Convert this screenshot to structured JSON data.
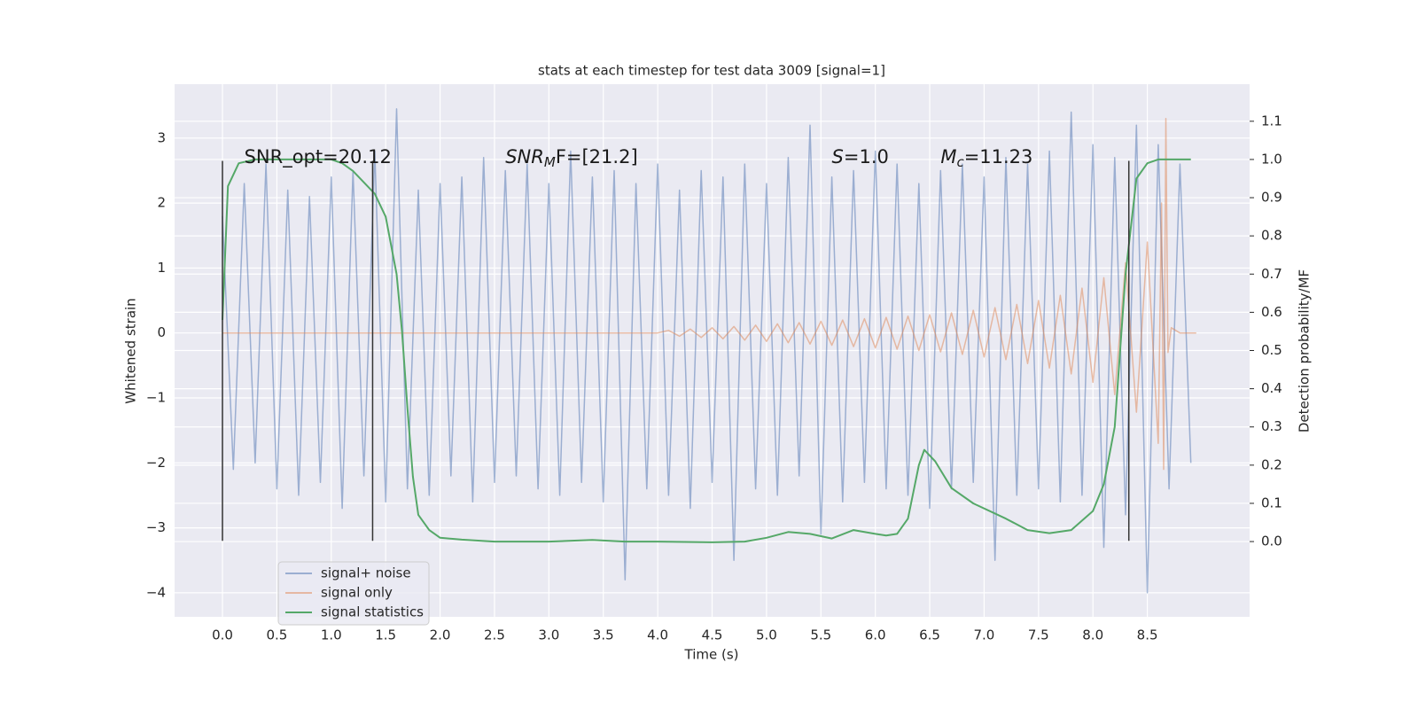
{
  "chart_data": {
    "type": "line",
    "title": "stats at each timestep for test data 3009 [signal=1]",
    "xlabel": "Time (s)",
    "ylabel": "Whitened strain",
    "y2label": "Detection probability/MF",
    "xlim": [
      -0.44,
      9.44
    ],
    "ylim": [
      -4.37,
      3.83
    ],
    "y2lim": [
      -0.197,
      1.197
    ],
    "xticks": [
      {
        "value": 0,
        "label": "0.0"
      },
      0.5,
      {
        "value": 1,
        "label": "1.0"
      },
      1.5,
      {
        "value": 2,
        "label": "2.0"
      },
      2.5,
      {
        "value": 3,
        "label": "3.0"
      },
      3.5,
      {
        "value": 4,
        "label": "4.0"
      },
      4.5,
      {
        "value": 5,
        "label": "5.0"
      },
      5.5,
      {
        "value": 6,
        "label": "6.0"
      },
      6.5,
      {
        "value": 7,
        "label": "7.0"
      },
      7.5,
      {
        "value": 8,
        "label": "8.0"
      },
      8.5
    ],
    "yticks": [
      {
        "value": -4,
        "label": "−4"
      },
      {
        "value": -3,
        "label": "−3"
      },
      {
        "value": -2,
        "label": "−2"
      },
      {
        "value": -1,
        "label": "−1"
      },
      0,
      1,
      2,
      3
    ],
    "y2ticks": [
      {
        "value": 0,
        "label": "0.0"
      },
      0.1,
      0.2,
      0.3,
      0.4,
      0.5,
      0.6,
      0.7,
      0.8,
      0.9,
      {
        "value": 1,
        "label": "1.0"
      },
      1.1
    ],
    "grid": true,
    "legend": "lower left",
    "series": [
      {
        "name": "signal+ noise",
        "color": "#4c72b0",
        "opacity": 0.5,
        "x": [
          0,
          0.1,
          0.2,
          0.3,
          0.4,
          0.5,
          0.6,
          0.7,
          0.8,
          0.9,
          1,
          1.1,
          1.2,
          1.3,
          1.4,
          1.5,
          1.6,
          1.7,
          1.8,
          1.9,
          2,
          2.1,
          2.2,
          2.3,
          2.4,
          2.5,
          2.6,
          2.7,
          2.8,
          2.9,
          3,
          3.1,
          3.2,
          3.3,
          3.4,
          3.5,
          3.6,
          3.7,
          3.8,
          3.9,
          4,
          4.1,
          4.2,
          4.3,
          4.4,
          4.5,
          4.6,
          4.7,
          4.8,
          4.9,
          5,
          5.1,
          5.2,
          5.3,
          5.4,
          5.5,
          5.6,
          5.7,
          5.8,
          5.9,
          6,
          6.1,
          6.2,
          6.3,
          6.4,
          6.5,
          6.6,
          6.7,
          6.8,
          6.9,
          7,
          7.1,
          7.2,
          7.3,
          7.4,
          7.5,
          7.6,
          7.7,
          7.8,
          7.9,
          8,
          8.1,
          8.2,
          8.3,
          8.4,
          8.5,
          8.6,
          8.7,
          8.8,
          8.9
        ],
        "values": [
          1.8,
          -2.1,
          2.3,
          -2.0,
          2.6,
          -2.4,
          2.2,
          -2.5,
          2.1,
          -2.3,
          2.4,
          -2.7,
          2.5,
          -2.2,
          2.8,
          -2.6,
          3.45,
          -2.4,
          2.2,
          -2.5,
          2.3,
          -2.2,
          2.4,
          -2.6,
          2.7,
          -2.3,
          2.5,
          -2.2,
          2.6,
          -2.4,
          2.3,
          -2.5,
          2.8,
          -2.3,
          2.4,
          -2.6,
          2.5,
          -3.8,
          2.3,
          -2.4,
          2.6,
          -2.5,
          2.2,
          -2.7,
          2.5,
          -2.3,
          2.4,
          -3.5,
          2.6,
          -2.4,
          2.3,
          -2.5,
          2.7,
          -2.2,
          3.2,
          -3.1,
          2.4,
          -2.6,
          2.5,
          -2.3,
          2.8,
          -2.4,
          2.6,
          -2.5,
          2.3,
          -2.7,
          2.5,
          -2.4,
          2.6,
          -2.3,
          2.4,
          -3.5,
          2.7,
          -2.5,
          2.6,
          -2.4,
          2.8,
          -2.6,
          3.4,
          -2.5,
          2.9,
          -3.3,
          2.7,
          -2.8,
          3.2,
          -4.0,
          2.9,
          -2.4,
          2.6,
          -2.0
        ]
      },
      {
        "name": "signal only",
        "color": "#dd8452",
        "opacity": 0.5,
        "x": [
          0,
          1,
          2,
          3,
          4,
          4.1,
          4.2,
          4.3,
          4.4,
          4.5,
          4.6,
          4.7,
          4.8,
          4.9,
          5,
          5.1,
          5.2,
          5.3,
          5.4,
          5.5,
          5.6,
          5.7,
          5.8,
          5.9,
          6,
          6.1,
          6.2,
          6.3,
          6.4,
          6.5,
          6.6,
          6.7,
          6.8,
          6.9,
          7,
          7.1,
          7.2,
          7.3,
          7.4,
          7.5,
          7.6,
          7.7,
          7.8,
          7.9,
          8,
          8.1,
          8.2,
          8.3,
          8.4,
          8.5,
          8.6,
          8.63,
          8.65,
          8.67,
          8.69,
          8.72,
          8.8,
          8.95
        ],
        "values": [
          0,
          0,
          0,
          0,
          0,
          0.04,
          -0.05,
          0.06,
          -0.07,
          0.08,
          -0.09,
          0.1,
          -0.11,
          0.12,
          -0.13,
          0.14,
          -0.15,
          0.16,
          -0.17,
          0.18,
          -0.19,
          0.2,
          -0.21,
          0.22,
          -0.23,
          0.24,
          -0.25,
          0.26,
          -0.27,
          0.28,
          -0.29,
          0.31,
          -0.33,
          0.35,
          -0.37,
          0.39,
          -0.41,
          0.44,
          -0.47,
          0.5,
          -0.54,
          0.58,
          -0.63,
          0.69,
          -0.76,
          0.85,
          -0.95,
          1.08,
          -1.22,
          1.4,
          -1.7,
          2.0,
          -2.1,
          3.3,
          -0.3,
          0.08,
          0,
          0
        ]
      },
      {
        "name": "signal statistics",
        "color": "#55a868",
        "opacity": 1,
        "axis": "y2",
        "x": [
          0,
          0.05,
          0.15,
          0.3,
          0.5,
          0.8,
          1,
          1.1,
          1.2,
          1.3,
          1.4,
          1.5,
          1.6,
          1.65,
          1.7,
          1.75,
          1.8,
          1.9,
          2,
          2.2,
          2.5,
          3,
          3.4,
          3.7,
          4,
          4.5,
          4.8,
          5,
          5.2,
          5.4,
          5.6,
          5.8,
          6,
          6.1,
          6.2,
          6.3,
          6.4,
          6.45,
          6.55,
          6.7,
          6.9,
          7.2,
          7.4,
          7.6,
          7.8,
          8,
          8.1,
          8.2,
          8.3,
          8.4,
          8.5,
          8.6,
          8.9
        ],
        "values": [
          0.58,
          0.93,
          0.99,
          1.0,
          1.0,
          1.0,
          1.0,
          0.99,
          0.97,
          0.94,
          0.91,
          0.85,
          0.7,
          0.55,
          0.35,
          0.17,
          0.07,
          0.03,
          0.01,
          0.005,
          0.0,
          0.0,
          0.004,
          0.0,
          0.0,
          -0.002,
          0.0,
          0.01,
          0.025,
          0.02,
          0.008,
          0.03,
          0.02,
          0.016,
          0.02,
          0.06,
          0.2,
          0.24,
          0.21,
          0.14,
          0.1,
          0.06,
          0.03,
          0.022,
          0.03,
          0.08,
          0.15,
          0.3,
          0.7,
          0.95,
          0.99,
          1.0,
          1.0
        ]
      }
    ],
    "vlines": {
      "x": [
        0,
        1.38,
        8.33
      ],
      "ymin": -3.2,
      "ymax": 2.65,
      "color": "#333333"
    },
    "annotations": [
      {
        "main": "SNR_opt=20.12",
        "italic": false
      },
      {
        "main": "SNR",
        "sub": "M",
        "rest": "F=[21.2]",
        "italic": true
      },
      {
        "main": "S",
        "rest": "=1.0",
        "italic": true
      },
      {
        "main": "M",
        "sub": "c",
        "rest": "=11.23",
        "italic": true
      }
    ]
  }
}
